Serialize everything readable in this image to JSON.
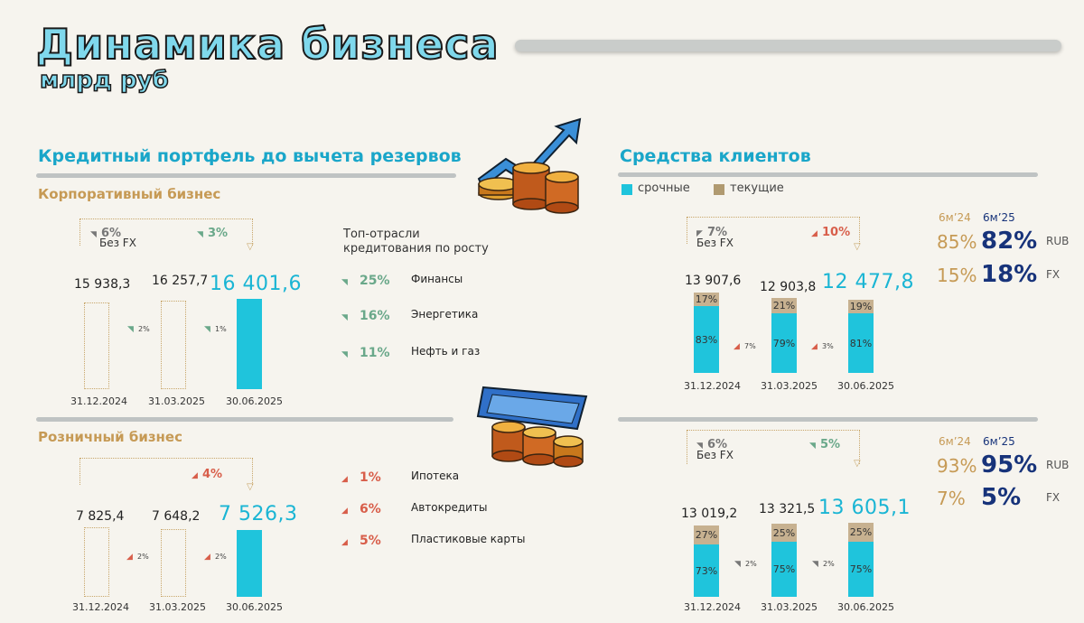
{
  "header": {
    "title": "Динамика бизнеса",
    "subtitle": "млрд руб"
  },
  "loans": {
    "title": "Кредитный портфель до вычета резервов",
    "corporate": {
      "title": "Корпоративный бизнес",
      "change_total": "6%",
      "change_total_note": "Без FX",
      "change_recent": "3%",
      "values_text": [
        "15 938,3",
        "16 257,7",
        "16 401,6"
      ],
      "step_changes": [
        "2%",
        "1%"
      ],
      "industries_title": "Топ-отрасли кредитования по росту",
      "industries": [
        {
          "pct": "25%",
          "label": "Финансы"
        },
        {
          "pct": "16%",
          "label": "Энергетика"
        },
        {
          "pct": "11%",
          "label": "Нефть и газ"
        }
      ]
    },
    "retail": {
      "title": "Розничный бизнес",
      "change_total": "4%",
      "values_text": [
        "7 825,4",
        "7 648,2",
        "7 526,3"
      ],
      "step_changes": [
        "2%",
        "2%"
      ],
      "products": [
        {
          "pct": "1%",
          "label": "Ипотека"
        },
        {
          "pct": "6%",
          "label": "Автокредиты"
        },
        {
          "pct": "5%",
          "label": "Пластиковые карты"
        }
      ]
    }
  },
  "deposits": {
    "title": "Средства клиентов",
    "legend": {
      "term": "срочные",
      "current": "текущие"
    },
    "corporate": {
      "change_total": "7%",
      "change_total_note": "Без FX",
      "change_recent": "10%",
      "values_text": [
        "13 907,6",
        "12 903,8",
        "12 477,8"
      ],
      "step_changes": [
        "7%",
        "3%"
      ],
      "term_pct": [
        "83%",
        "79%",
        "81%"
      ],
      "current_pct": [
        "17%",
        "21%",
        "19%"
      ],
      "share_heads": [
        "6м’24",
        "6м’25"
      ],
      "rub": {
        "old": "85%",
        "new": "82%",
        "label": "RUB"
      },
      "fx": {
        "old": "15%",
        "new": "18%",
        "label": "FX"
      }
    },
    "retail": {
      "change_total": "6%",
      "change_total_note": "Без FX",
      "change_recent": "5%",
      "values_text": [
        "13 019,2",
        "13 321,5",
        "13 605,1"
      ],
      "step_changes": [
        "2%",
        "2%"
      ],
      "term_pct": [
        "73%",
        "75%",
        "75%"
      ],
      "current_pct": [
        "27%",
        "25%",
        "25%"
      ],
      "share_heads": [
        "6м’24",
        "6м’25"
      ],
      "rub": {
        "old": "93%",
        "new": "95%",
        "label": "RUB"
      },
      "fx": {
        "old": "7%",
        "new": "5%",
        "label": "FX"
      }
    }
  },
  "dates": [
    "31.12.2024",
    "31.03.2025",
    "30.06.2025"
  ],
  "chart_data": [
    {
      "type": "bar",
      "title": "Корпоративный бизнес",
      "categories": [
        "31.12.2024",
        "31.03.2025",
        "30.06.2025"
      ],
      "values": [
        15938.3,
        16257.7,
        16401.6
      ]
    },
    {
      "type": "bar",
      "title": "Розничный бизнес",
      "categories": [
        "31.12.2024",
        "31.03.2025",
        "30.06.2025"
      ],
      "values": [
        7825.4,
        7648.2,
        7526.3
      ]
    },
    {
      "type": "bar",
      "title": "Средства клиентов",
      "categories": [
        "31.12.2024",
        "31.03.2025",
        "30.06.2025"
      ],
      "values": [
        13907.6,
        12903.8,
        12477.8
      ],
      "series": [
        {
          "name": "срочные",
          "values": [
            83,
            79,
            81
          ]
        },
        {
          "name": "текущие",
          "values": [
            17,
            21,
            19
          ]
        }
      ]
    },
    {
      "type": "bar",
      "categories": [
        "31.12.2024",
        "31.03.2025",
        "30.06.2025"
      ],
      "values": [
        13019.2,
        13321.5,
        13605.1
      ],
      "series": [
        {
          "name": "срочные",
          "values": [
            73,
            75,
            75
          ]
        },
        {
          "name": "текущие",
          "values": [
            27,
            25,
            25
          ]
        }
      ]
    }
  ],
  "colors": {
    "accent": "#1fc4dc",
    "gold": "#c69a55",
    "navy": "#17337a",
    "current": "#c7b190",
    "up": "#d85e4a",
    "down": "#6aa88a"
  },
  "icons": [
    "coins-growth-icon",
    "money-coins-icon"
  ]
}
